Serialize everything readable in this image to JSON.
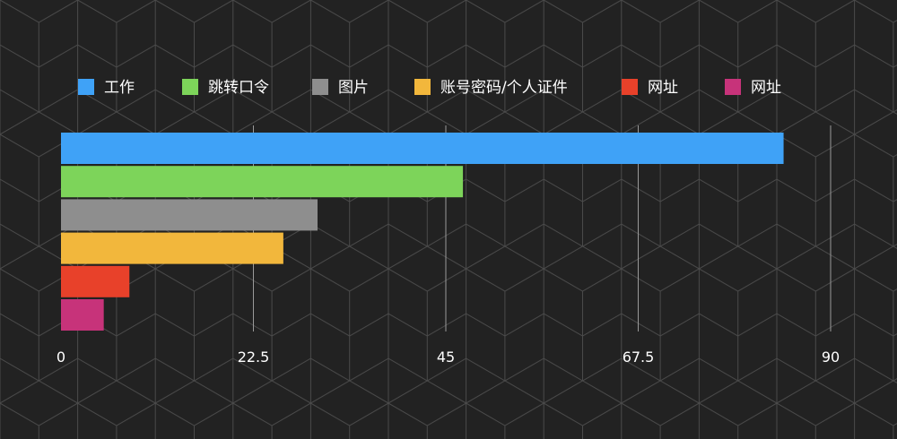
{
  "chart_data": {
    "type": "bar",
    "orientation": "horizontal",
    "title": "",
    "xlabel": "",
    "ylabel": "",
    "xlim": [
      0,
      90
    ],
    "x_ticks": [
      "0",
      "22.5",
      "45",
      "67.5",
      "90"
    ],
    "grid": "vertical",
    "legend_position": "top",
    "background_pattern": "hexagonal-cube-lines",
    "background_color": "#222222",
    "series": [
      {
        "name": "工作",
        "value": 84.5,
        "color": "#3FA2F7"
      },
      {
        "name": "跳转口令",
        "value": 47,
        "color": "#7DD45A"
      },
      {
        "name": "图片",
        "value": 30,
        "color": "#8E8E8E"
      },
      {
        "name": "账号密码/个人证件",
        "value": 26,
        "color": "#F2B73C"
      },
      {
        "name": "网址",
        "value": 8,
        "color": "#E8412A"
      },
      {
        "name": "网址",
        "value": 5,
        "color": "#C7337A"
      }
    ]
  }
}
